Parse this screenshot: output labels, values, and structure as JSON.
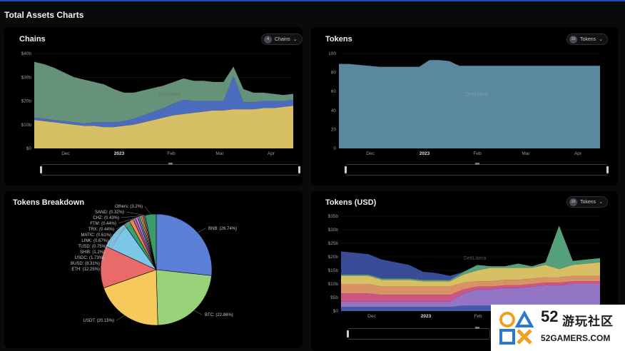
{
  "page": {
    "title": "Total Assets Charts"
  },
  "chains_panel": {
    "title": "Chains",
    "selector_count": "4",
    "selector_label": "Chains",
    "watermark": "DefiLlama"
  },
  "tokens_panel": {
    "title": "Tokens",
    "selector_count": "10",
    "selector_label": "Tokens",
    "watermark": "DefiLlama"
  },
  "breakdown_panel": {
    "title": "Tokens Breakdown"
  },
  "tokens_usd_panel": {
    "title": "Tokens (USD)",
    "selector_count": "10",
    "selector_label": "Tokens",
    "watermark": "DefiLlama"
  },
  "logo": {
    "number": "52",
    "name": "游玩社区",
    "url": "52GAMERS.COM"
  },
  "chart_data": [
    {
      "id": "chains",
      "type": "area",
      "stacked": true,
      "x_ticks": [
        "Dec",
        "2023",
        "Feb",
        "Mar",
        "Apr"
      ],
      "y_ticks": [
        "$0",
        "$10b",
        "$20b",
        "$30b",
        "$40b"
      ],
      "ylim": [
        0,
        40
      ],
      "colors": [
        "#e3c96a",
        "#4f72c8",
        "#6a9a7e"
      ],
      "series": [
        {
          "values": [
            12,
            11.5,
            11,
            10.5,
            10,
            9.5,
            9.5,
            9,
            9,
            9.5,
            10,
            11,
            12,
            13,
            14,
            14.5,
            15,
            15.5,
            16,
            16,
            16.5,
            16.5,
            16.5,
            17,
            17,
            17.5,
            18
          ]
        },
        {
          "values": [
            1,
            1,
            1,
            1,
            1,
            1,
            1.5,
            2,
            2,
            2,
            2.5,
            3,
            3.5,
            4,
            5,
            6,
            5,
            4.5,
            4,
            4,
            14,
            3,
            3,
            3,
            3,
            2.5,
            2.5
          ]
        },
        {
          "values": [
            23.5,
            23,
            22,
            20.5,
            19,
            18.5,
            17,
            16,
            14,
            12,
            11,
            10.5,
            10,
            9.5,
            9,
            9,
            8.5,
            8.5,
            8,
            8,
            4,
            5.5,
            4,
            3.5,
            3,
            2.5,
            2.5
          ]
        }
      ]
    },
    {
      "id": "tokens",
      "type": "area",
      "stacked": true,
      "x_ticks": [
        "Dec",
        "2023",
        "Feb",
        "Mar",
        "Apr"
      ],
      "y_ticks": [
        "0",
        "20",
        "40",
        "60",
        "80",
        "100"
      ],
      "ylim": [
        0,
        100
      ],
      "colors": [
        "#5f8fa8"
      ],
      "series": [
        {
          "values": [
            89,
            89,
            88,
            87,
            86,
            86,
            86,
            86,
            86,
            93,
            93,
            92,
            87,
            87,
            87,
            87,
            87,
            87,
            87,
            87,
            87,
            87,
            87,
            87,
            87,
            87,
            87
          ]
        }
      ]
    },
    {
      "id": "tokens-breakdown",
      "type": "pie",
      "slices": [
        {
          "label": "BNB: (26.74%)",
          "value": 26.74,
          "color": "#5b7fd6"
        },
        {
          "label": "BTC: (22.86%)",
          "value": 22.86,
          "color": "#97d279"
        },
        {
          "label": "USDT: (20.15%)",
          "value": 20.15,
          "color": "#f6c95d"
        },
        {
          "label": "ETH: (12.25%)",
          "value": 12.25,
          "color": "#ea6a6a"
        },
        {
          "label": "BUSD: (8.31%)",
          "value": 8.31,
          "color": "#7cc7e8"
        },
        {
          "label": "USDC: (1.73%)",
          "value": 1.73,
          "color": "#3b9e70"
        },
        {
          "label": "SHIB: (1.2%)",
          "value": 1.2,
          "color": "#f08a4c"
        },
        {
          "label": "TUSD: (0.75%)",
          "value": 0.75,
          "color": "#9b68c7"
        },
        {
          "label": "LINK: (0.67%)",
          "value": 0.67,
          "color": "#e57dc4"
        },
        {
          "label": "MATIC: (0.61%)",
          "value": 0.61,
          "color": "#6a7bd4"
        },
        {
          "label": "TRX: (0.44%)",
          "value": 0.44,
          "color": "#a5d86a"
        },
        {
          "label": "FTM: (0.44%)",
          "value": 0.44,
          "color": "#f5b453"
        },
        {
          "label": "CHZ: (0.43%)",
          "value": 0.43,
          "color": "#e05555"
        },
        {
          "label": "SAND: (0.32%)",
          "value": 0.32,
          "color": "#6ab7d6"
        },
        {
          "label": "Others: (3.2%)",
          "value": 3.2,
          "color": "#3d9a6b"
        }
      ]
    },
    {
      "id": "tokens-usd",
      "type": "area",
      "stacked": true,
      "x_ticks": [
        "Dec",
        "2023",
        "Feb"
      ],
      "y_ticks": [
        "$0",
        "$5b",
        "$10b",
        "$15b",
        "$20b",
        "$25b",
        "$30b",
        "$35b"
      ],
      "ylim": [
        0,
        35
      ],
      "colors": [
        "#4a5fb0",
        "#9b7ad0",
        "#d85a8c",
        "#e59a6a",
        "#e3c96a",
        "#5aa882",
        "#3d4fa0"
      ],
      "series": [
        {
          "values": [
            1.5,
            1.5,
            1.5,
            1.5,
            1.5,
            1.5,
            1.5,
            1.5,
            1.5,
            2,
            2,
            2,
            2,
            2,
            2,
            2,
            2,
            2,
            2,
            2
          ]
        },
        {
          "values": [
            2,
            2,
            2,
            2,
            2,
            2,
            2,
            2,
            2,
            4.5,
            6,
            6,
            6.5,
            6.5,
            7,
            7.5,
            7.5,
            8,
            8,
            8
          ]
        },
        {
          "values": [
            3,
            3,
            3,
            2.5,
            2.5,
            2.5,
            2.5,
            2.5,
            2.5,
            1.5,
            1,
            1,
            1,
            1,
            1,
            1,
            1,
            1,
            1,
            1
          ]
        },
        {
          "values": [
            3.5,
            3.5,
            3.5,
            3,
            3,
            3,
            3,
            3,
            3,
            2.5,
            2,
            2,
            2,
            2,
            2,
            2,
            2,
            2,
            2,
            2
          ]
        },
        {
          "values": [
            3,
            3,
            3,
            2.5,
            2.5,
            2.5,
            2,
            2,
            2,
            3,
            4,
            5,
            4.5,
            4.5,
            4,
            4.5,
            3,
            4,
            4.5,
            5
          ]
        },
        {
          "values": [
            0.5,
            0.5,
            0.5,
            0.5,
            0.5,
            0.5,
            0.5,
            0.5,
            0.5,
            1,
            2,
            0.5,
            0.5,
            1.5,
            0.5,
            1,
            16,
            1.5,
            1.5,
            1.5
          ]
        },
        {
          "values": [
            8.5,
            8,
            7.5,
            7,
            6,
            5,
            3,
            2.5,
            1.5,
            0,
            0,
            0,
            0,
            0,
            0,
            0,
            0,
            0,
            0,
            0
          ]
        }
      ]
    }
  ]
}
